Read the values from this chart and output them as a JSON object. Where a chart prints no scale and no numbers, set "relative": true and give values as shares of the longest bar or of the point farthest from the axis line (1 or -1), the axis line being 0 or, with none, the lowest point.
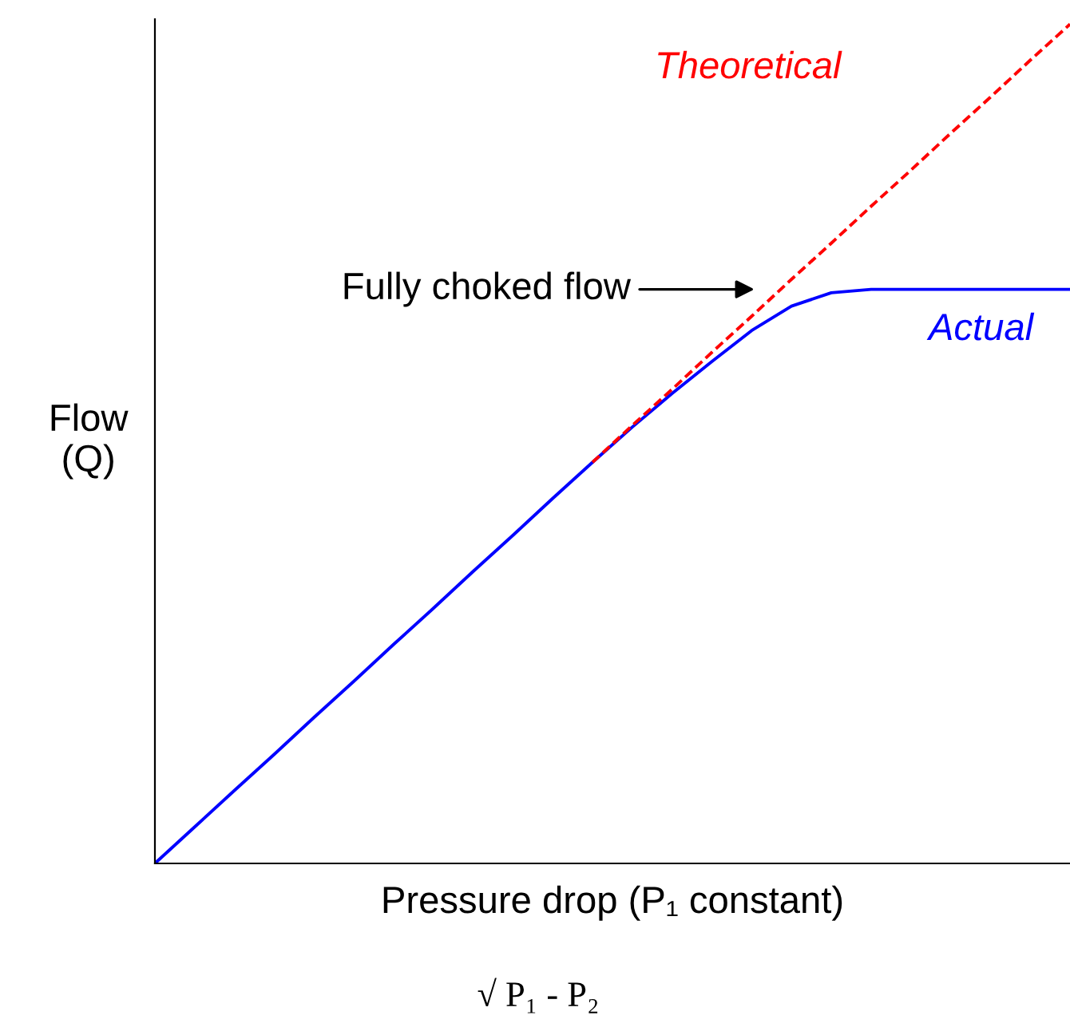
{
  "chart_data": {
    "type": "line",
    "relative": true,
    "xlabel": "Pressure drop (P₁ constant)",
    "ylabel": "Flow\n(Q)",
    "categories": [
      null,
      null,
      null,
      null,
      null,
      null,
      null,
      null,
      null,
      null,
      null,
      null,
      null,
      null,
      null,
      null,
      null,
      null,
      null,
      null,
      null,
      null,
      null,
      null
    ],
    "series": [
      {
        "name": "Theoretical",
        "color": "#ff0000",
        "line_style": "dashed",
        "values": [
          null,
          null,
          null,
          null,
          null,
          null,
          null,
          null,
          null,
          null,
          null,
          0.478,
          0.522,
          0.565,
          0.609,
          0.652,
          0.696,
          0.739,
          0.783,
          0.826,
          0.87,
          0.913,
          0.957,
          1
        ]
      },
      {
        "name": "Actual",
        "color": "#0000ff",
        "line_style": "solid",
        "values": [
          0,
          0.0435,
          0.087,
          0.13,
          0.174,
          0.217,
          0.261,
          0.304,
          0.348,
          0.391,
          0.435,
          0.478,
          0.52,
          0.56,
          0.598,
          0.635,
          0.664,
          0.68,
          0.684,
          0.684,
          0.684,
          0.684,
          0.684,
          0.684
        ]
      }
    ],
    "annotations": [
      "Fully choked flow",
      "√ P₁ - P₂"
    ],
    "legend": false,
    "marker": "none"
  }
}
